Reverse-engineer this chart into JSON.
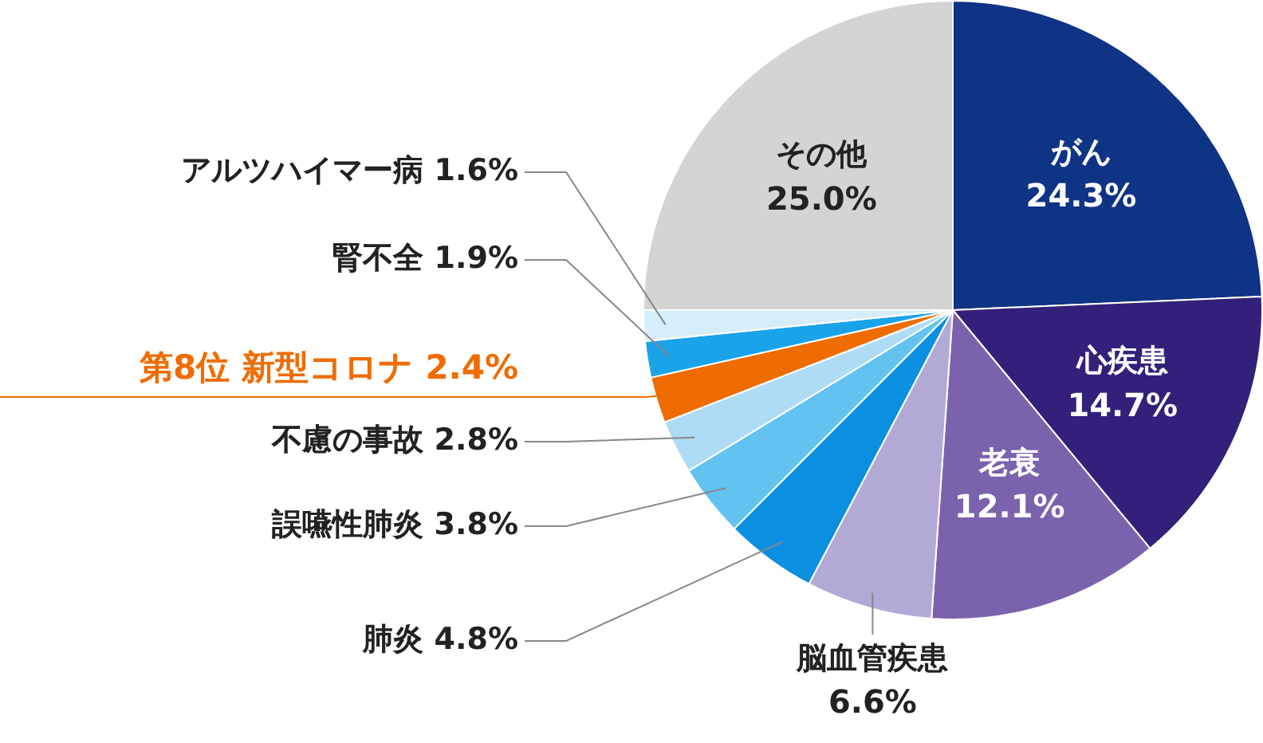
{
  "chart_data": {
    "type": "pie",
    "categories": [
      "がん",
      "心疾患",
      "老衰",
      "脳血管疾患",
      "肺炎",
      "誤嚥性肺炎",
      "不慮の事故",
      "第8位 新型コロナ",
      "腎不全",
      "アルツハイマー病",
      "その他"
    ],
    "values": [
      24.3,
      14.7,
      12.1,
      6.6,
      4.8,
      3.8,
      2.8,
      2.4,
      1.9,
      1.6,
      25.0
    ],
    "colors": [
      "#0f3385",
      "#33207a",
      "#7b62ad",
      "#b3a9d6",
      "#0b8fe0",
      "#62c2f0",
      "#aedcf6",
      "#ef6c00",
      "#1aa3e9",
      "#d6edfb",
      "#d4d4d4"
    ],
    "value_labels": [
      "24.3%",
      "14.7%",
      "12.1%",
      "6.6%",
      "4.8%",
      "3.8%",
      "2.8%",
      "2.4%",
      "1.9%",
      "1.6%",
      "25.0%"
    ],
    "legend": false
  }
}
